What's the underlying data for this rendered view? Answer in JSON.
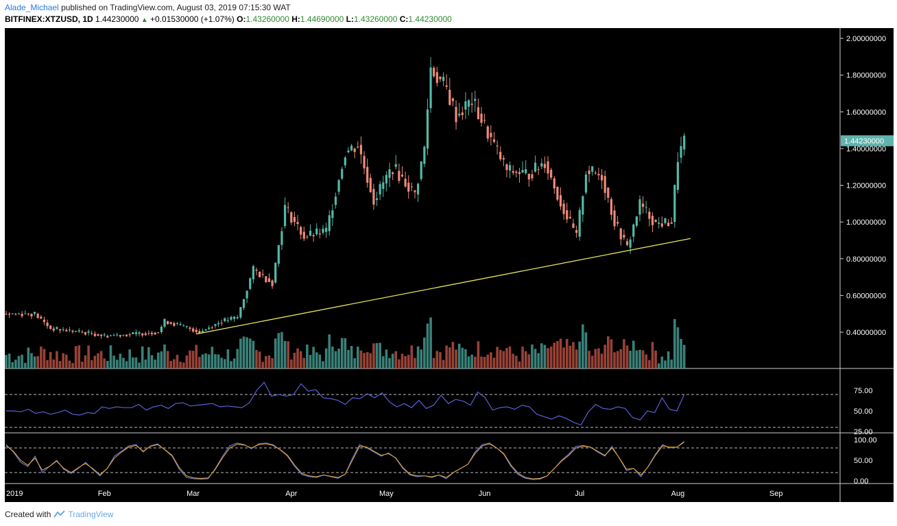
{
  "header": {
    "author": "Alade_Michael",
    "published": "published on TradingView.com, August 03, 2019 07:15:30 WAT",
    "symbol": "BITFINEX:XTZUSD, 1D",
    "last": "1.44230000",
    "change": "+0.01530000 (+1.07%)",
    "o_label": "O:",
    "o_value": "1.43260000",
    "h_label": "H:",
    "h_value": "1.44690000",
    "l_label": "L:",
    "l_value": "1.43260000",
    "c_label": "C:",
    "c_value": "1.44230000"
  },
  "footer": {
    "created_with": "Created with",
    "brand": "TradingView"
  },
  "colors": {
    "bg": "#000000",
    "up": "#53b9a8",
    "down": "#ef8a7a",
    "volume_up": "#3f8f86",
    "volume_down": "#a8493d",
    "rsi": "#5b5fd6",
    "stoch_k": "#6b7ce6",
    "stoch_d": "#e0a030",
    "trendline": "#e6e65a",
    "price_tag": "#5fb4ad"
  },
  "chart_data": [
    {
      "type": "candlestick",
      "title": "BITFINEX:XTZUSD, 1D",
      "ylim": [
        0.2,
        2.0
      ],
      "y_ticks": [
        "2.00000000",
        "1.80000000",
        "1.60000000",
        "1.40000000",
        "1.20000000",
        "1.00000000",
        "0.80000000",
        "0.60000000",
        "0.40000000"
      ],
      "y_tick_values": [
        2.0,
        1.8,
        1.6,
        1.4,
        1.2,
        1.0,
        0.8,
        0.6,
        0.4
      ],
      "x_ticks": [
        "2019",
        "Feb",
        "Mar",
        "Apr",
        "May",
        "Jun",
        "Jul",
        "Aug",
        "Sep"
      ],
      "last_price_label": "1.44230000",
      "last_price": 1.4423,
      "trendline": {
        "x": [
          "2019-03-02",
          "2019-08-05"
        ],
        "y": [
          0.39,
          0.91
        ]
      },
      "close_series": [
        {
          "date": "2019-01-01",
          "close": 0.5
        },
        {
          "date": "2019-01-10",
          "close": 0.5
        },
        {
          "date": "2019-01-15",
          "close": 0.42
        },
        {
          "date": "2019-01-25",
          "close": 0.4
        },
        {
          "date": "2019-02-01",
          "close": 0.38
        },
        {
          "date": "2019-02-10",
          "close": 0.39
        },
        {
          "date": "2019-02-18",
          "close": 0.4
        },
        {
          "date": "2019-02-20",
          "close": 0.46
        },
        {
          "date": "2019-02-28",
          "close": 0.42
        },
        {
          "date": "2019-03-03",
          "close": 0.4
        },
        {
          "date": "2019-03-10",
          "close": 0.46
        },
        {
          "date": "2019-03-15",
          "close": 0.48
        },
        {
          "date": "2019-03-20",
          "close": 0.74
        },
        {
          "date": "2019-03-26",
          "close": 0.67
        },
        {
          "date": "2019-03-30",
          "close": 1.08
        },
        {
          "date": "2019-04-05",
          "close": 0.92
        },
        {
          "date": "2019-04-12",
          "close": 0.95
        },
        {
          "date": "2019-04-18",
          "close": 1.38
        },
        {
          "date": "2019-04-22",
          "close": 1.42
        },
        {
          "date": "2019-04-27",
          "close": 1.12
        },
        {
          "date": "2019-05-03",
          "close": 1.3
        },
        {
          "date": "2019-05-10",
          "close": 1.15
        },
        {
          "date": "2019-05-13",
          "close": 1.4
        },
        {
          "date": "2019-05-15",
          "close": 1.84
        },
        {
          "date": "2019-05-20",
          "close": 1.72
        },
        {
          "date": "2019-05-23",
          "close": 1.58
        },
        {
          "date": "2019-05-28",
          "close": 1.66
        },
        {
          "date": "2019-06-03",
          "close": 1.45
        },
        {
          "date": "2019-06-08",
          "close": 1.28
        },
        {
          "date": "2019-06-15",
          "close": 1.26
        },
        {
          "date": "2019-06-20",
          "close": 1.33
        },
        {
          "date": "2019-06-25",
          "close": 1.1
        },
        {
          "date": "2019-06-30",
          "close": 0.92
        },
        {
          "date": "2019-07-03",
          "close": 1.28
        },
        {
          "date": "2019-07-08",
          "close": 1.25
        },
        {
          "date": "2019-07-12",
          "close": 1.0
        },
        {
          "date": "2019-07-16",
          "close": 0.86
        },
        {
          "date": "2019-07-20",
          "close": 1.1
        },
        {
          "date": "2019-07-25",
          "close": 0.99
        },
        {
          "date": "2019-07-30",
          "close": 1.0
        },
        {
          "date": "2019-08-01",
          "close": 1.35
        },
        {
          "date": "2019-08-03",
          "close": 1.44
        }
      ]
    },
    {
      "type": "line",
      "title": "RSI",
      "ylim": [
        25,
        95
      ],
      "y_ticks": [
        "75.00",
        "50.00",
        "25.00"
      ],
      "y_tick_values": [
        75,
        50,
        25
      ],
      "bands": [
        70,
        30
      ],
      "values": [
        50,
        50,
        49,
        52,
        47,
        49,
        46,
        48,
        51,
        46,
        45,
        48,
        47,
        55,
        53,
        55,
        54,
        54,
        58,
        51,
        55,
        57,
        53,
        59,
        60,
        56,
        57,
        58,
        59,
        55,
        56,
        55,
        54,
        60,
        75,
        85,
        68,
        70,
        68,
        70,
        83,
        74,
        76,
        66,
        65,
        63,
        58,
        66,
        65,
        71,
        66,
        72,
        61,
        55,
        59,
        54,
        63,
        53,
        57,
        69,
        59,
        64,
        62,
        57,
        73,
        66,
        51,
        54,
        55,
        52,
        57,
        55,
        46,
        43,
        40,
        44,
        41,
        36,
        33,
        49,
        58,
        53,
        52,
        55,
        53,
        42,
        39,
        50,
        48,
        66,
        52,
        50,
        70
      ]
    },
    {
      "type": "line",
      "title": "Stochastic",
      "ylim": [
        0,
        100
      ],
      "y_ticks": [
        "100.00",
        "50.00",
        "0.00"
      ],
      "y_tick_values": [
        100,
        50,
        0
      ],
      "bands": [
        80,
        20
      ],
      "series": [
        {
          "values": [
            88,
            70,
            45,
            35,
            60,
            20,
            35,
            50,
            28,
            18,
            30,
            45,
            28,
            12,
            30,
            60,
            72,
            85,
            88,
            70,
            85,
            90,
            75,
            60,
            28,
            8,
            5,
            4,
            5,
            30,
            60,
            85,
            92,
            88,
            78,
            90,
            92,
            88,
            75,
            60,
            35,
            15,
            10,
            8,
            14,
            10,
            6,
            16,
            55,
            88,
            80,
            70,
            60,
            68,
            55,
            30,
            14,
            10,
            12,
            8,
            14,
            5,
            20,
            30,
            40,
            70,
            88,
            92,
            80,
            64,
            35,
            15,
            6,
            3,
            4,
            12,
            30,
            50,
            65,
            84,
            86,
            82,
            70,
            60,
            84,
            55,
            25,
            30,
            10,
            35,
            64,
            88,
            80,
            82,
            96
          ]
        },
        {
          "values": [
            85,
            72,
            50,
            38,
            55,
            26,
            35,
            48,
            30,
            20,
            32,
            42,
            30,
            15,
            30,
            55,
            70,
            82,
            86,
            72,
            84,
            88,
            76,
            62,
            32,
            12,
            7,
            6,
            7,
            28,
            56,
            80,
            89,
            87,
            80,
            88,
            90,
            86,
            76,
            62,
            38,
            18,
            12,
            10,
            14,
            11,
            8,
            16,
            50,
            84,
            82,
            72,
            62,
            66,
            56,
            32,
            16,
            12,
            12,
            10,
            14,
            8,
            20,
            30,
            40,
            66,
            85,
            90,
            80,
            66,
            38,
            18,
            8,
            5,
            6,
            12,
            30,
            48,
            62,
            80,
            84,
            82,
            72,
            62,
            80,
            56,
            28,
            30,
            14,
            34,
            62,
            85,
            82,
            82,
            94
          ]
        }
      ]
    }
  ]
}
